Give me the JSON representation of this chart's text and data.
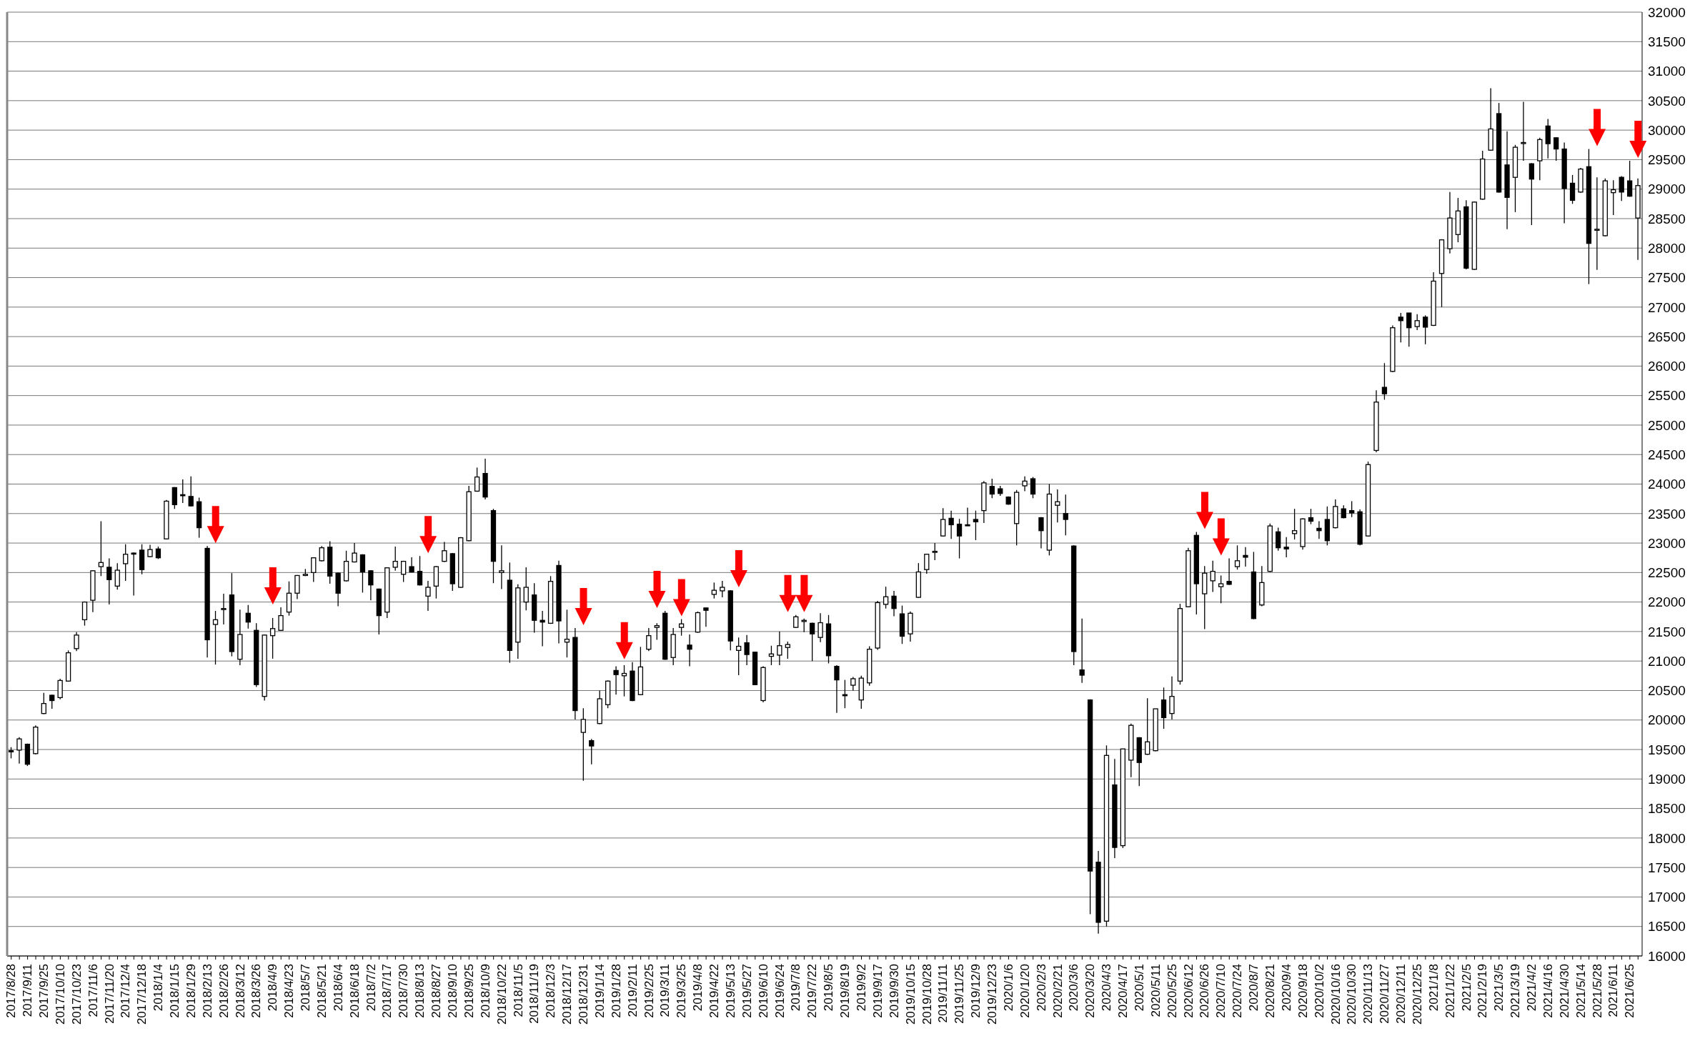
{
  "chart_data": {
    "type": "candlestick",
    "categories": [
      "2017/8/28",
      null,
      "2017/9/11",
      null,
      "2017/9/25",
      null,
      "2017/10/10",
      null,
      "2017/10/23",
      null,
      "2017/11/6",
      null,
      "2017/11/20",
      null,
      "2017/12/4",
      null,
      "2017/12/18",
      null,
      "2018/1/4",
      null,
      "2018/1/15",
      null,
      "2018/1/29",
      null,
      "2018/2/13",
      null,
      "2018/2/26",
      null,
      "2018/3/12",
      null,
      "2018/3/26",
      null,
      "2018/4/9",
      null,
      "2018/4/23",
      null,
      "2018/5/7",
      null,
      "2018/5/21",
      null,
      "2018/6/4",
      null,
      "2018/6/18",
      null,
      "2018/7/2",
      null,
      "2018/7/17",
      null,
      "2018/7/30",
      null,
      "2018/8/13",
      null,
      "2018/8/27",
      null,
      "2018/9/10",
      null,
      "2018/9/25",
      null,
      "2018/10/9",
      null,
      "2018/10/22",
      null,
      "2018/11/5",
      null,
      "2018/11/19",
      null,
      "2018/12/3",
      null,
      "2018/12/17",
      null,
      "2018/12/31",
      null,
      "2019/1/14",
      null,
      "2019/1/28",
      null,
      "2019/2/11",
      null,
      "2019/2/25",
      null,
      "2019/3/11",
      null,
      "2019/3/25",
      null,
      "2019/4/8",
      null,
      "2019/4/22",
      null,
      "2019/5/13",
      null,
      "2019/5/27",
      null,
      "2019/6/10",
      null,
      "2019/6/24",
      null,
      "2019/7/8",
      null,
      "2019/7/22",
      null,
      "2019/8/5",
      null,
      "2019/8/19",
      null,
      "2019/9/2",
      null,
      "2019/9/17",
      null,
      "2019/9/30",
      null,
      "2019/10/15",
      null,
      "2019/10/28",
      null,
      "2019/11/11",
      null,
      "2019/11/25",
      null,
      "2019/12/9",
      null,
      "2019/12/23",
      null,
      "2020/1/6",
      null,
      "2020/1/20",
      null,
      "2020/2/3",
      null,
      "2020/2/21",
      null,
      "2020/3/6",
      null,
      "2020/3/20",
      null,
      "2020/4/3",
      null,
      "2020/4/17",
      null,
      "2020/5/1",
      null,
      "2020/5/11",
      null,
      "2020/5/25",
      null,
      "2020/6/12",
      null,
      "2020/6/26",
      null,
      "2020/7/10",
      null,
      "2020/7/24",
      null,
      "2020/8/7",
      null,
      "2020/8/21",
      null,
      "2020/9/4",
      null,
      "2020/9/18",
      null,
      "2020/10/2",
      null,
      "2020/10/16",
      null,
      "2020/10/30",
      null,
      "2020/11/13",
      null,
      "2020/11/27",
      null,
      "2020/12/11",
      null,
      "2020/12/25",
      null,
      "2021/1/8",
      null,
      "2021/1/22",
      null,
      "2021/2/5",
      null,
      "2021/2/19",
      null,
      "2021/3/5",
      null,
      "2021/3/19",
      null,
      "2021/4/2",
      null,
      "2021/4/16",
      null,
      "2021/4/30",
      null,
      "2021/5/14",
      null,
      "2021/5/28",
      null,
      "2021/6/11",
      null,
      "2021/6/25",
      null
    ],
    "ohlc": [
      [
        19480,
        19540,
        19350,
        19460
      ],
      [
        19490,
        19710,
        19260,
        19680
      ],
      [
        19590,
        19600,
        19220,
        19250
      ],
      [
        19430,
        19910,
        19420,
        19880
      ],
      [
        20110,
        20460,
        20100,
        20280
      ],
      [
        20420,
        20430,
        20190,
        20330
      ],
      [
        20380,
        20700,
        20350,
        20670
      ],
      [
        20660,
        21180,
        20650,
        21140
      ],
      [
        21210,
        21490,
        21170,
        21440
      ],
      [
        21700,
        22010,
        21600,
        22000
      ],
      [
        22030,
        22540,
        21830,
        22530
      ],
      [
        22600,
        23370,
        22440,
        22670
      ],
      [
        22590,
        22740,
        21960,
        22380
      ],
      [
        22270,
        22660,
        22210,
        22540
      ],
      [
        22650,
        22980,
        22360,
        22810
      ],
      [
        22830,
        22840,
        22110,
        22820
      ],
      [
        22880,
        22980,
        22470,
        22550
      ],
      [
        22770,
        22970,
        22760,
        22890
      ],
      [
        22900,
        22940,
        22730,
        22750
      ],
      [
        23070,
        23730,
        23060,
        23710
      ],
      [
        23940,
        23950,
        23580,
        23650
      ],
      [
        23820,
        24080,
        23680,
        23810
      ],
      [
        23790,
        24130,
        23620,
        23630
      ],
      [
        23700,
        23770,
        23090,
        23260
      ],
      [
        22910,
        22950,
        21060,
        21360
      ],
      [
        21620,
        21850,
        20940,
        21700
      ],
      [
        21890,
        22140,
        21620,
        21890
      ],
      [
        22120,
        22490,
        21080,
        21160
      ],
      [
        21030,
        21870,
        20930,
        21450
      ],
      [
        21810,
        21950,
        21550,
        21660
      ],
      [
        21520,
        21640,
        20560,
        20600
      ],
      [
        20400,
        21450,
        20330,
        21440
      ],
      [
        21430,
        21730,
        21040,
        21550
      ],
      [
        21520,
        21910,
        21510,
        21770
      ],
      [
        21830,
        22350,
        21770,
        22150
      ],
      [
        22150,
        22460,
        22050,
        22450
      ],
      [
        22450,
        22560,
        22440,
        22470
      ],
      [
        22500,
        22760,
        22340,
        22750
      ],
      [
        22700,
        22950,
        22690,
        22920
      ],
      [
        22930,
        23030,
        22310,
        22440
      ],
      [
        22490,
        22500,
        21930,
        22150
      ],
      [
        22360,
        22870,
        22350,
        22690
      ],
      [
        22680,
        23000,
        22670,
        22830
      ],
      [
        22800,
        22810,
        22160,
        22510
      ],
      [
        22530,
        22540,
        22030,
        22290
      ],
      [
        22220,
        22230,
        21450,
        21770
      ],
      [
        21830,
        22590,
        21730,
        22580
      ],
      [
        22590,
        22940,
        22530,
        22690
      ],
      [
        22470,
        22700,
        22340,
        22690
      ],
      [
        22600,
        22760,
        22500,
        22510
      ],
      [
        22520,
        22780,
        22280,
        22290
      ],
      [
        22100,
        22360,
        21850,
        22250
      ],
      [
        22270,
        22610,
        22060,
        22600
      ],
      [
        22690,
        23020,
        22680,
        22870
      ],
      [
        22820,
        22830,
        22190,
        22310
      ],
      [
        22250,
        23100,
        22240,
        23090
      ],
      [
        23040,
        23970,
        23030,
        23870
      ],
      [
        23880,
        24280,
        23870,
        24120
      ],
      [
        24180,
        24430,
        23740,
        23780
      ],
      [
        23550,
        23580,
        22320,
        22690
      ],
      [
        22500,
        22960,
        22220,
        22530
      ],
      [
        22370,
        22670,
        20970,
        21180
      ],
      [
        21320,
        22300,
        21040,
        22240
      ],
      [
        22000,
        22590,
        21860,
        22250
      ],
      [
        22120,
        22320,
        21480,
        21690
      ],
      [
        21690,
        21850,
        21250,
        21660
      ],
      [
        21640,
        22440,
        21630,
        22350
      ],
      [
        22620,
        22700,
        21300,
        21680
      ],
      [
        21320,
        21870,
        21060,
        21370
      ],
      [
        21400,
        21560,
        20010,
        20160
      ],
      [
        19790,
        20200,
        18970,
        20010
      ],
      [
        19650,
        19680,
        19250,
        19560
      ],
      [
        19940,
        20500,
        19930,
        20360
      ],
      [
        20260,
        20670,
        20200,
        20660
      ],
      [
        20840,
        20910,
        20430,
        20770
      ],
      [
        20750,
        20930,
        20400,
        20790
      ],
      [
        20830,
        20980,
        20320,
        20330
      ],
      [
        20430,
        21240,
        20420,
        20900
      ],
      [
        21200,
        21560,
        21170,
        21430
      ],
      [
        21570,
        21640,
        21360,
        21600
      ],
      [
        21810,
        21850,
        21020,
        21030
      ],
      [
        21060,
        21560,
        20930,
        21450
      ],
      [
        21570,
        21710,
        21430,
        21630
      ],
      [
        21270,
        21450,
        20910,
        21200
      ],
      [
        21490,
        21840,
        21480,
        21820
      ],
      [
        21900,
        21900,
        21580,
        21860
      ],
      [
        22130,
        22330,
        22060,
        22200
      ],
      [
        22190,
        22360,
        22080,
        22250
      ],
      [
        22190,
        22200,
        21180,
        21340
      ],
      [
        21180,
        21400,
        20760,
        21250
      ],
      [
        21310,
        21440,
        20930,
        21110
      ],
      [
        21150,
        21160,
        20590,
        20600
      ],
      [
        20330,
        20910,
        20300,
        20890
      ],
      [
        21080,
        21260,
        20930,
        21120
      ],
      [
        21100,
        21500,
        20930,
        21260
      ],
      [
        21230,
        21330,
        21040,
        21280
      ],
      [
        21570,
        21780,
        21560,
        21750
      ],
      [
        21670,
        21720,
        21490,
        21690
      ],
      [
        21640,
        21650,
        21000,
        21460
      ],
      [
        21400,
        21810,
        21320,
        21650
      ],
      [
        21630,
        21780,
        20960,
        21090
      ],
      [
        20910,
        20930,
        20120,
        20680
      ],
      [
        20430,
        20680,
        20200,
        20420
      ],
      [
        20590,
        20730,
        20500,
        20700
      ],
      [
        20340,
        20750,
        20190,
        20710
      ],
      [
        20630,
        21250,
        20580,
        21200
      ],
      [
        21220,
        22020,
        21190,
        21990
      ],
      [
        21960,
        22260,
        21890,
        22090
      ],
      [
        22100,
        22190,
        21760,
        21890
      ],
      [
        21800,
        21940,
        21290,
        21420
      ],
      [
        21460,
        21840,
        21330,
        21810
      ],
      [
        22080,
        22660,
        22070,
        22510
      ],
      [
        22550,
        22820,
        22480,
        22810
      ],
      [
        22860,
        23000,
        22710,
        22860
      ],
      [
        23120,
        23590,
        23110,
        23400
      ],
      [
        23420,
        23550,
        23070,
        23310
      ],
      [
        23320,
        23410,
        22740,
        23120
      ],
      [
        23310,
        23600,
        23290,
        23300
      ],
      [
        23400,
        23550,
        23050,
        23360
      ],
      [
        23550,
        24050,
        23340,
        24020
      ],
      [
        23960,
        24090,
        23760,
        23830
      ],
      [
        23920,
        23970,
        23800,
        23840
      ],
      [
        23780,
        23790,
        23650,
        23660
      ],
      [
        23330,
        23900,
        22960,
        23860
      ],
      [
        23970,
        24130,
        23880,
        24050
      ],
      [
        24090,
        24120,
        23760,
        23830
      ],
      [
        23430,
        23440,
        22910,
        23210
      ],
      [
        22880,
        24000,
        22790,
        23830
      ],
      [
        23640,
        23910,
        23350,
        23700
      ],
      [
        23500,
        23820,
        23130,
        23400
      ],
      [
        22950,
        22960,
        20930,
        21160
      ],
      [
        20850,
        21720,
        20630,
        20760
      ],
      [
        20340,
        20350,
        16710,
        17440
      ],
      [
        17590,
        17780,
        16380,
        16570
      ],
      [
        16590,
        19570,
        16500,
        19400
      ],
      [
        18900,
        19340,
        17660,
        17840
      ],
      [
        17870,
        19510,
        17830,
        19510
      ],
      [
        19320,
        19940,
        19030,
        19910
      ],
      [
        19700,
        19710,
        18880,
        19280
      ],
      [
        19420,
        20370,
        19410,
        19630
      ],
      [
        19480,
        20190,
        19470,
        20190
      ],
      [
        20340,
        20550,
        19850,
        20040
      ],
      [
        20110,
        20740,
        20010,
        20400
      ],
      [
        20660,
        21970,
        20600,
        21890
      ],
      [
        21920,
        22920,
        21910,
        22870
      ],
      [
        23130,
        23190,
        21790,
        22310
      ],
      [
        22140,
        22610,
        21540,
        22490
      ],
      [
        22360,
        22700,
        22170,
        22520
      ],
      [
        22260,
        22450,
        21980,
        22310
      ],
      [
        22350,
        22740,
        22290,
        22300
      ],
      [
        22600,
        22960,
        22550,
        22700
      ],
      [
        22790,
        22930,
        22600,
        22760
      ],
      [
        22510,
        22850,
        21710,
        21720
      ],
      [
        21950,
        22610,
        21930,
        22330
      ],
      [
        22520,
        23330,
        22510,
        23290
      ],
      [
        23190,
        23260,
        22870,
        22920
      ],
      [
        22930,
        23100,
        22760,
        22900
      ],
      [
        23160,
        23580,
        23060,
        23210
      ],
      [
        22940,
        23420,
        22890,
        23410
      ],
      [
        23430,
        23580,
        23320,
        23370
      ],
      [
        23250,
        23370,
        23070,
        23210
      ],
      [
        23400,
        23620,
        22960,
        23040
      ],
      [
        23260,
        23740,
        23250,
        23620
      ],
      [
        23580,
        23640,
        23420,
        23430
      ],
      [
        23550,
        23710,
        23440,
        23510
      ],
      [
        23530,
        23570,
        22960,
        22980
      ],
      [
        23120,
        24380,
        23110,
        24330
      ],
      [
        24570,
        25590,
        24540,
        25390
      ],
      [
        25640,
        26050,
        25430,
        25530
      ],
      [
        25910,
        26690,
        25900,
        26650
      ],
      [
        26830,
        26900,
        26400,
        26770
      ],
      [
        26900,
        26900,
        26330,
        26650
      ],
      [
        26670,
        26880,
        26610,
        26770
      ],
      [
        26830,
        26860,
        26370,
        26660
      ],
      [
        26690,
        27590,
        26680,
        27440
      ],
      [
        27570,
        28150,
        27000,
        28140
      ],
      [
        27990,
        28950,
        27910,
        28510
      ],
      [
        28230,
        28850,
        28100,
        28630
      ],
      [
        28700,
        28810,
        27640,
        27660
      ],
      [
        27640,
        28790,
        27630,
        28780
      ],
      [
        28830,
        29650,
        28820,
        29510
      ],
      [
        29660,
        30710,
        29650,
        30020
      ],
      [
        30280,
        30460,
        28940,
        28950
      ],
      [
        29410,
        29980,
        28320,
        28860
      ],
      [
        29200,
        29750,
        28610,
        29710
      ],
      [
        29790,
        30480,
        29480,
        29790
      ],
      [
        29430,
        29440,
        28390,
        29170
      ],
      [
        29480,
        29870,
        29150,
        29840
      ],
      [
        30070,
        30190,
        29520,
        29770
      ],
      [
        29870,
        29880,
        29480,
        29680
      ],
      [
        29680,
        29790,
        28420,
        29010
      ],
      [
        29100,
        29240,
        28750,
        28810
      ],
      [
        28950,
        29360,
        28940,
        29340
      ],
      [
        29380,
        29680,
        27390,
        28080
      ],
      [
        28320,
        29200,
        27630,
        28320
      ],
      [
        28210,
        29180,
        28200,
        29140
      ],
      [
        28940,
        29150,
        28560,
        28990
      ],
      [
        29200,
        29220,
        28800,
        28950
      ],
      [
        29140,
        29480,
        28870,
        28880
      ],
      [
        28510,
        29180,
        27800,
        29060
      ]
    ],
    "ylim": [
      16000,
      32000
    ],
    "yticks": [
      16000,
      16500,
      17000,
      17500,
      18000,
      18500,
      19000,
      19500,
      20000,
      20500,
      21000,
      21500,
      22000,
      22500,
      23000,
      23500,
      24000,
      24500,
      25000,
      25500,
      26000,
      26500,
      27000,
      27500,
      28000,
      28500,
      29000,
      29500,
      30000,
      30500,
      31000,
      31500,
      32000
    ],
    "grid": "y"
  }
}
